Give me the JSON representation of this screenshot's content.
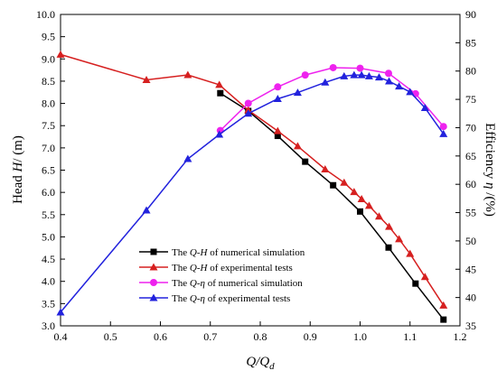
{
  "chart_data": {
    "type": "line",
    "xlabel": "Q/Qd",
    "xlabel_parts": {
      "main": "Q/Q",
      "sub": "d"
    },
    "ylabel_left": "Head H/ (m)",
    "ylabel_left_parts": {
      "pre": "Head ",
      "italic": "H",
      "post": "/ (m)"
    },
    "ylabel_right": "Efficiency η /(%)",
    "ylabel_right_parts": {
      "pre": "Efficiency ",
      "italic": "η",
      "post": " /(%)"
    },
    "xlim": [
      0.4,
      1.2
    ],
    "ylim_left": [
      3.0,
      10.0
    ],
    "ylim_right": [
      35,
      90
    ],
    "x_ticks": [
      "0.4",
      "0.5",
      "0.6",
      "0.7",
      "0.8",
      "0.9",
      "1.0",
      "1.1",
      "1.2"
    ],
    "y_left_ticks": [
      "3.0",
      "3.5",
      "4.0",
      "4.5",
      "5.0",
      "5.5",
      "6.0",
      "6.5",
      "7.0",
      "7.5",
      "8.0",
      "8.5",
      "9.0",
      "9.5",
      "10.0"
    ],
    "y_right_ticks": [
      "35",
      "40",
      "45",
      "50",
      "55",
      "60",
      "65",
      "70",
      "75",
      "80",
      "85",
      "90"
    ],
    "legend_position": "center-left",
    "series": [
      {
        "name": "The Q-H of numerical simulation",
        "legend_parts": {
          "pre": "The ",
          "i1": "Q",
          "mid": "-",
          "i2": "H",
          "post": " of numerical simulation"
        },
        "axis": "left",
        "color": "#000000",
        "marker": "square",
        "points": [
          [
            0.72,
            8.23
          ],
          [
            0.776,
            7.83
          ],
          [
            0.835,
            7.27
          ],
          [
            0.89,
            6.69
          ],
          [
            0.946,
            6.16
          ],
          [
            1.0,
            5.57
          ],
          [
            1.057,
            4.76
          ],
          [
            1.111,
            3.95
          ],
          [
            1.167,
            3.14
          ]
        ]
      },
      {
        "name": "The Q-H of experimental tests",
        "legend_parts": {
          "pre": "The ",
          "i1": "Q",
          "mid": "-",
          "i2": "H",
          "post": " of experimental tests"
        },
        "axis": "left",
        "color": "#d62020",
        "marker": "triangle",
        "points": [
          [
            0.4,
            9.1
          ],
          [
            0.572,
            8.53
          ],
          [
            0.655,
            8.64
          ],
          [
            0.718,
            8.42
          ],
          [
            0.776,
            7.85
          ],
          [
            0.835,
            7.38
          ],
          [
            0.875,
            7.04
          ],
          [
            0.93,
            6.52
          ],
          [
            0.968,
            6.22
          ],
          [
            0.988,
            6.01
          ],
          [
            1.003,
            5.85
          ],
          [
            1.018,
            5.7
          ],
          [
            1.038,
            5.46
          ],
          [
            1.058,
            5.23
          ],
          [
            1.078,
            4.95
          ],
          [
            1.1,
            4.62
          ],
          [
            1.13,
            4.1
          ],
          [
            1.167,
            3.46
          ]
        ]
      },
      {
        "name": "The Q-η of numerical simulation",
        "legend_parts": {
          "pre": "The ",
          "i1": "Q",
          "mid": "-",
          "i2": "η",
          "post": " of numerical simulation"
        },
        "axis": "right",
        "color": "#ee22ee",
        "marker": "circle",
        "points": [
          [
            0.72,
            69.5
          ],
          [
            0.776,
            74.3
          ],
          [
            0.835,
            77.2
          ],
          [
            0.89,
            79.3
          ],
          [
            0.946,
            80.6
          ],
          [
            1.0,
            80.5
          ],
          [
            1.057,
            79.6
          ],
          [
            1.111,
            76.0
          ],
          [
            1.167,
            70.2
          ]
        ]
      },
      {
        "name": "The Q-η of experimental tests",
        "legend_parts": {
          "pre": "The ",
          "i1": "Q",
          "mid": "-",
          "i2": "η",
          "post": " of experimental tests"
        },
        "axis": "right",
        "color": "#2222dd",
        "marker": "triangle",
        "points": [
          [
            0.4,
            37.4
          ],
          [
            0.572,
            55.4
          ],
          [
            0.655,
            64.5
          ],
          [
            0.718,
            68.8
          ],
          [
            0.776,
            72.5
          ],
          [
            0.835,
            75.1
          ],
          [
            0.875,
            76.2
          ],
          [
            0.93,
            78.0
          ],
          [
            0.968,
            79.1
          ],
          [
            0.988,
            79.3
          ],
          [
            1.003,
            79.3
          ],
          [
            1.018,
            79.1
          ],
          [
            1.038,
            78.9
          ],
          [
            1.058,
            78.2
          ],
          [
            1.078,
            77.3
          ],
          [
            1.1,
            76.3
          ],
          [
            1.13,
            73.5
          ],
          [
            1.167,
            68.9
          ]
        ]
      }
    ]
  }
}
